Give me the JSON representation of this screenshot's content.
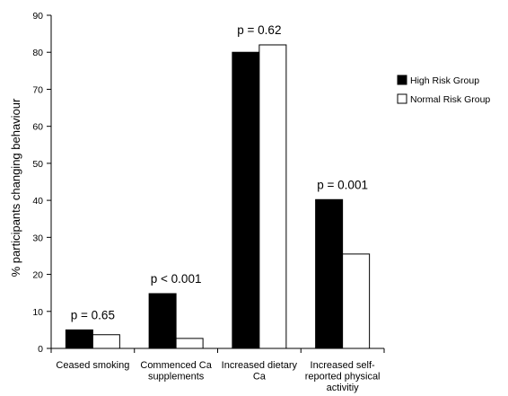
{
  "chart_data": {
    "type": "bar",
    "ylabel": "% participants changing behaviour",
    "ylim": [
      0,
      90
    ],
    "yticks": [
      0,
      10,
      20,
      30,
      40,
      50,
      60,
      70,
      80,
      90
    ],
    "categories": [
      [
        "Ceased smoking"
      ],
      [
        "Commenced Ca",
        "supplements"
      ],
      [
        "Increased dietary",
        "Ca"
      ],
      [
        "Increased self-",
        "reported physical",
        "activitiy"
      ]
    ],
    "series": [
      {
        "name": "High Risk Group",
        "color": "#000000",
        "values": [
          5,
          14.8,
          80,
          40.2
        ]
      },
      {
        "name": "Normal Risk Group",
        "color": "#ffffff",
        "values": [
          3.7,
          2.7,
          82,
          25.5
        ]
      }
    ],
    "annotations": [
      "p = 0.65",
      "p < 0.001",
      "p = 0.62",
      "p = 0.001"
    ],
    "legend_position": "right"
  }
}
